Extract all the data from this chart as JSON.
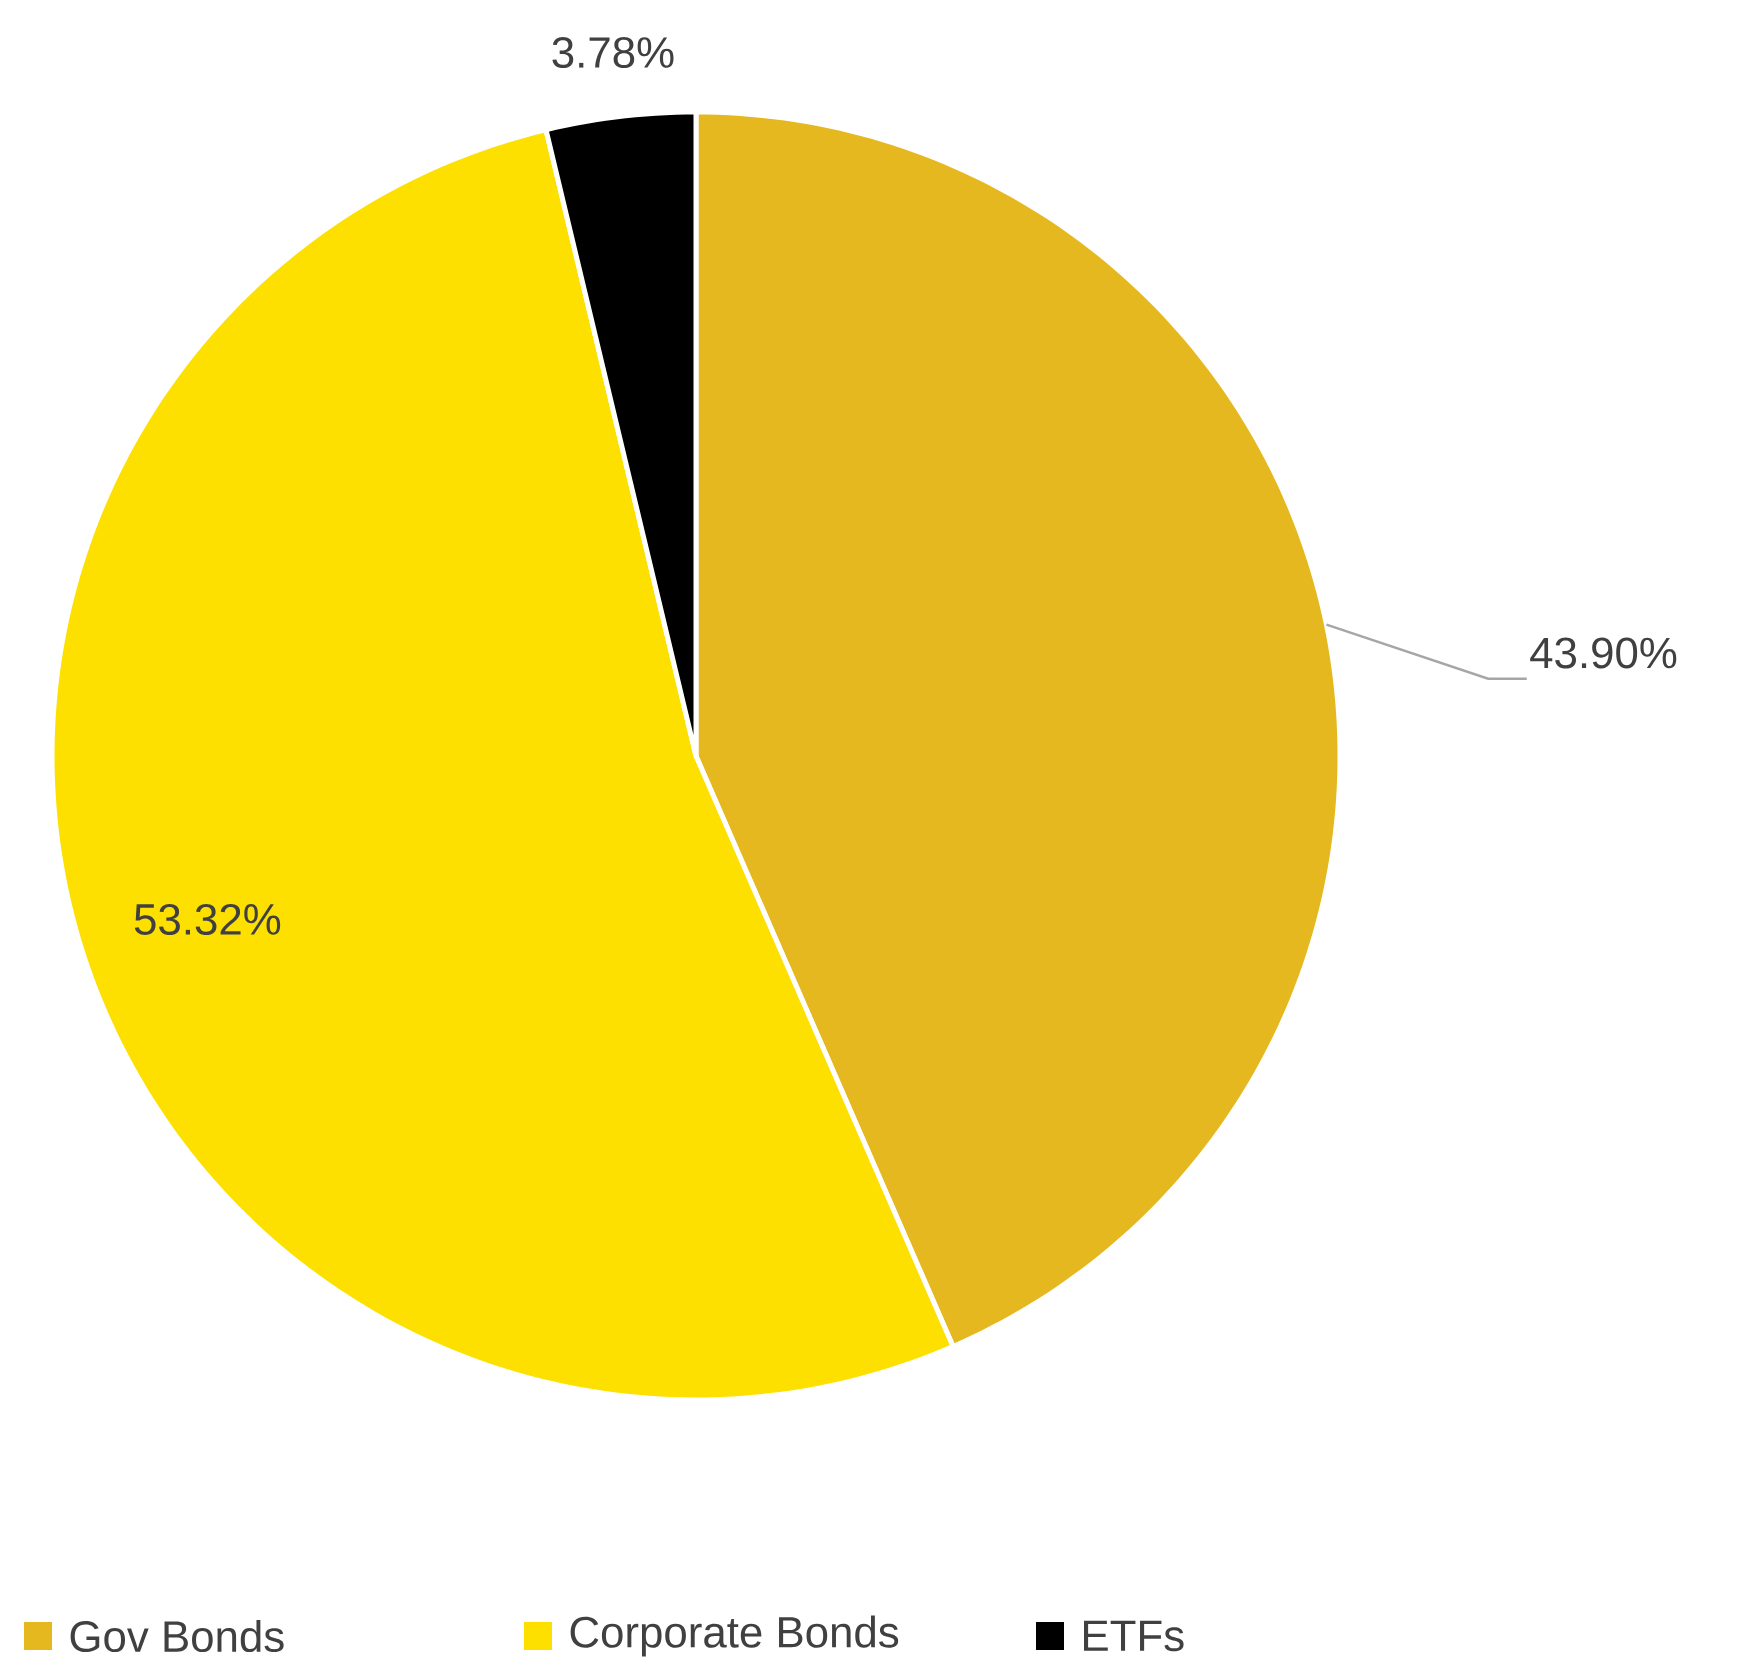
{
  "chart_data": {
    "type": "pie",
    "categories": [
      "Gov Bonds",
      "Corporate Bonds",
      "ETFs"
    ],
    "values": [
      43.9,
      53.32,
      3.78
    ],
    "value_labels": [
      "43.90%",
      "53.32%",
      "3.78%"
    ],
    "colors": [
      "#e5b820",
      "#fde000",
      "#000000"
    ],
    "legend": "bottom"
  }
}
